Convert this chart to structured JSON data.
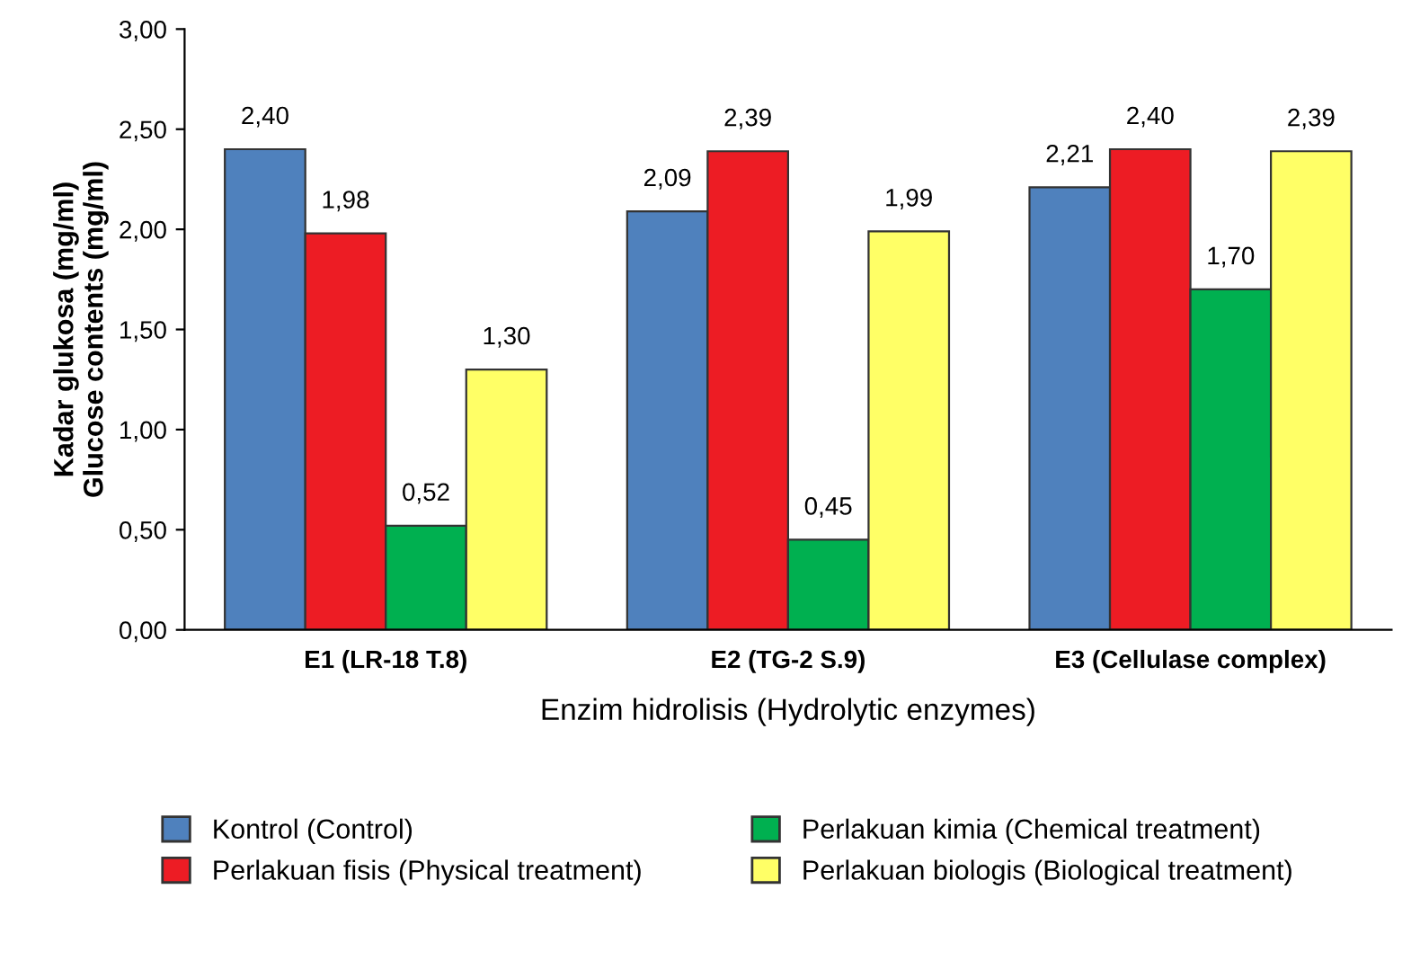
{
  "chart_data": {
    "type": "bar",
    "ylabel": "Kadar glukosa (mg/ml)\nGlucose contents (mg/ml)",
    "xlabel": "Enzim hidrolisis (Hydrolytic enzymes)",
    "categories": [
      "E1 (LR-18 T.8)",
      "E2 (TG-2 S.9)",
      "E3 (Cellulase complex)"
    ],
    "series": [
      {
        "name": "Kontrol (Control)",
        "color": "#4f81bd",
        "values": [
          2.4,
          2.09,
          2.21
        ],
        "value_labels": [
          "2,40",
          "2,09",
          "2,21"
        ]
      },
      {
        "name": "Perlakuan fisis (Physical treatment)",
        "color": "#ed1c24",
        "values": [
          1.98,
          2.39,
          2.4
        ],
        "value_labels": [
          "1,98",
          "2,39",
          "2,40"
        ]
      },
      {
        "name": "Perlakuan kimia (Chemical treatment)",
        "color": "#00b050",
        "values": [
          0.52,
          0.45,
          1.7
        ],
        "value_labels": [
          "0,52",
          "0,45",
          "1,70"
        ]
      },
      {
        "name": "Perlakuan biologis (Biological treatment)",
        "color": "#ffff66",
        "values": [
          1.3,
          1.99,
          2.39
        ],
        "value_labels": [
          "1,30",
          "1,99",
          "2,39"
        ]
      }
    ],
    "ylim": [
      0,
      3
    ],
    "yticks": [
      {
        "value": 0,
        "label": "0,00"
      },
      {
        "value": 0.5,
        "label": "0,50"
      },
      {
        "value": 1,
        "label": "1,00"
      },
      {
        "value": 1.5,
        "label": "1,50"
      },
      {
        "value": 2,
        "label": "2,00"
      },
      {
        "value": 2.5,
        "label": "2,50"
      },
      {
        "value": 3,
        "label": "3,00"
      }
    ],
    "grid": false,
    "legend": "bottom"
  }
}
